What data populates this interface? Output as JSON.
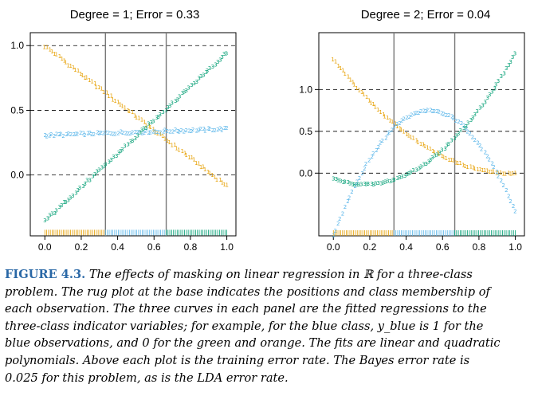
{
  "figure": {
    "caption_label": "FIGURE 4.3.",
    "caption_lines": [
      "The effects of masking on linear regression in ℝ for a three-class",
      "problem. The rug plot at the base indicates the positions and class membership of",
      "each observation. The three curves in each panel are the fitted regressions to the",
      "three-class indicator variables; for example, for the blue class, y_blue is 1 for the",
      "blue observations, and 0 for the green and orange. The fits are linear and quadratic",
      "polynomials. Above each plot is the training error rate. The Bayes error rate is",
      "0.025 for this problem, as is the LDA error rate."
    ]
  },
  "colors": {
    "orange": "#e69f00",
    "blue": "#56b4e9",
    "green": "#009e73"
  },
  "chart_data": [
    {
      "type": "scatter",
      "title": "Degree = 1; Error = 0.33",
      "xlim": [
        -0.08,
        1.05
      ],
      "ylim": [
        -0.47,
        1.1
      ],
      "x_ticks": [
        "0.0",
        "0.2",
        "0.4",
        "0.6",
        "0.8",
        "1.0"
      ],
      "y_ticks": [
        "0.0",
        "0.5",
        "1.0"
      ],
      "hlines": [
        0,
        0.5,
        1.0
      ],
      "vlines": [
        0.333,
        0.667
      ],
      "grid": false,
      "series": [
        {
          "marker": "1",
          "color": "orange",
          "x_range": [
            0,
            1
          ],
          "fit": [
            1.0,
            -1.0
          ],
          "x_min": 0.0,
          "x_max": 0.333
        },
        {
          "marker": "2",
          "color": "blue",
          "x_range": [
            0,
            1
          ],
          "fit": [
            0.313,
            0.033
          ]
        },
        {
          "marker": "3",
          "color": "green",
          "x_range": [
            0,
            1
          ],
          "fit": [
            -0.313,
            0.967
          ]
        }
      ],
      "rug_y": -0.46
    },
    {
      "type": "scatter",
      "title": "Degree = 2; Error = 0.04",
      "xlim": [
        -0.08,
        1.05
      ],
      "ylim": [
        -0.75,
        1.68
      ],
      "x_ticks": [
        "0.0",
        "0.2",
        "0.4",
        "0.6",
        "0.8",
        "1.0"
      ],
      "y_ticks": [
        "0.0",
        "0.5",
        "1.0"
      ],
      "hlines": [
        0,
        0.5,
        1.0
      ],
      "vlines": [
        0.333,
        0.667
      ],
      "grid": false,
      "series": [
        {
          "marker": "1",
          "color": "orange",
          "quad": [
            1.37,
            -2.77,
            1.4
          ]
        },
        {
          "marker": "2",
          "color": "blue",
          "quad": [
            -0.28,
            4.0,
            -4.0
          ]
        },
        {
          "marker": "3",
          "color": "green",
          "quad": [
            -0.09,
            -1.23,
            2.6
          ]
        }
      ],
      "rug_y": -0.74
    }
  ]
}
